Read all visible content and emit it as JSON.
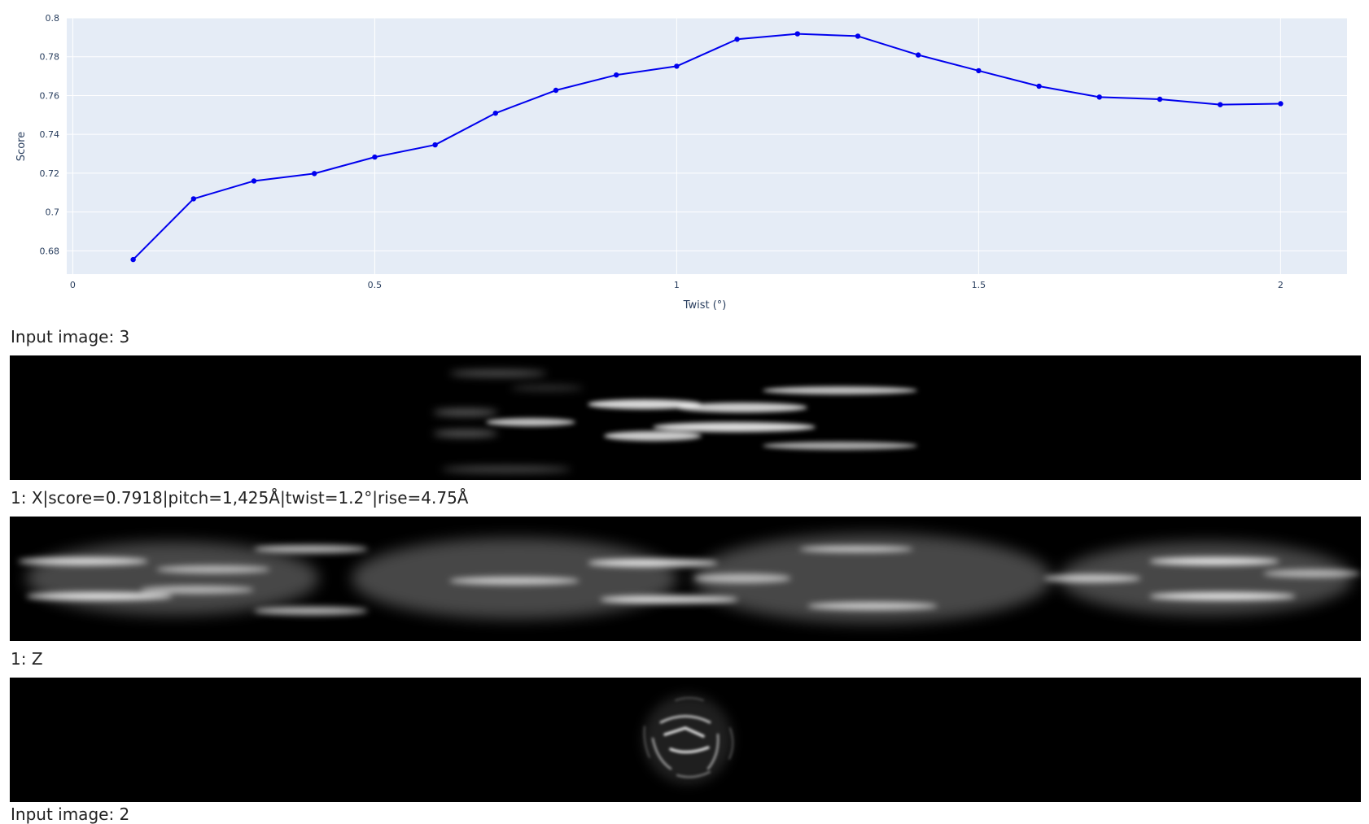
{
  "chart_data": {
    "type": "line",
    "xlabel": "Twist (°)",
    "ylabel": "Score",
    "xlim": [
      -0.01,
      2.11
    ],
    "ylim": [
      0.668,
      0.8
    ],
    "grid": true,
    "x_ticks": [
      "0",
      "0.5",
      "1",
      "1.5",
      "2"
    ],
    "y_ticks": [
      "0.68",
      "0.7",
      "0.72",
      "0.74",
      "0.76",
      "0.78",
      "0.8"
    ],
    "line_color": "#0000ee",
    "background_color": "#e5ecf6",
    "series": [
      {
        "x": [
          0.1,
          0.2,
          0.3,
          0.4,
          0.5,
          0.6,
          0.7,
          0.8,
          0.9,
          1.0,
          1.1,
          1.2,
          1.3,
          1.4,
          1.5,
          1.6,
          1.7,
          1.8,
          1.9,
          2.0
        ],
        "values": [
          0.6755,
          0.7068,
          0.716,
          0.7198,
          0.7283,
          0.7346,
          0.7509,
          0.7627,
          0.7706,
          0.7751,
          0.789,
          0.7918,
          0.7906,
          0.7809,
          0.7728,
          0.7648,
          0.7592,
          0.7581,
          0.7553,
          0.7558
        ]
      }
    ]
  },
  "captions": {
    "input_image": "Input image: 3",
    "x_result": "1: X|score=0.7918|pitch=1,425Å|twist=1.2°|rise=4.75Å",
    "z_result": "1: Z",
    "next_input": "Input image: 2"
  }
}
